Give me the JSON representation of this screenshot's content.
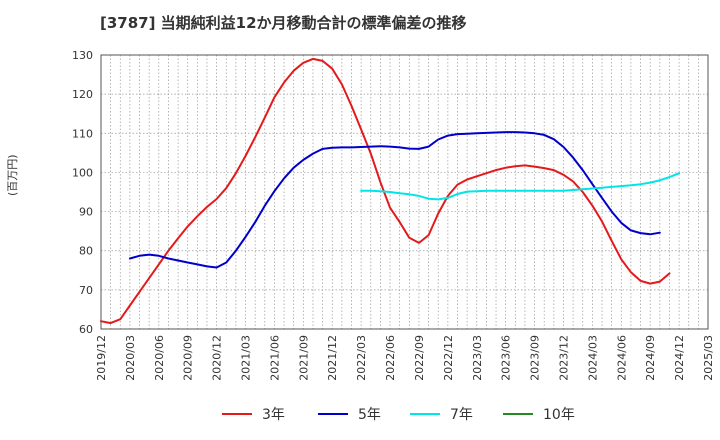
{
  "chart_data": {
    "type": "line",
    "title": "[3787]  当期純利益12か月移動合計の標準偏差の推移",
    "ylabel": "(百万円)",
    "xlabel": "",
    "ylim": [
      60,
      130
    ],
    "yticks": [
      60,
      70,
      80,
      90,
      100,
      110,
      120,
      130
    ],
    "xticks": [
      "2019/12",
      "2020/03",
      "2020/06",
      "2020/09",
      "2020/12",
      "2021/03",
      "2021/06",
      "2021/09",
      "2021/12",
      "2022/03",
      "2022/06",
      "2022/09",
      "2022/12",
      "2023/03",
      "2023/06",
      "2023/09",
      "2023/12",
      "2024/03",
      "2024/06",
      "2024/09",
      "2024/12",
      "2025/03"
    ],
    "grid": true,
    "legend_position": "bottom",
    "series": [
      {
        "name": "3年",
        "color": "#e31a1c",
        "x": [
          "2019/12",
          "2020/01",
          "2020/02",
          "2020/03",
          "2020/04",
          "2020/05",
          "2020/06",
          "2020/07",
          "2020/08",
          "2020/09",
          "2020/10",
          "2020/11",
          "2020/12",
          "2021/01",
          "2021/02",
          "2021/03",
          "2021/04",
          "2021/05",
          "2021/06",
          "2021/07",
          "2021/08",
          "2021/09",
          "2021/10",
          "2021/11",
          "2021/12",
          "2022/01",
          "2022/02",
          "2022/03",
          "2022/04",
          "2022/05",
          "2022/06",
          "2022/07",
          "2022/08",
          "2022/09",
          "2022/10",
          "2022/11",
          "2022/12",
          "2023/01",
          "2023/02",
          "2023/03",
          "2023/04",
          "2023/05",
          "2023/06",
          "2023/07",
          "2023/08",
          "2023/09",
          "2023/10",
          "2023/11",
          "2023/12",
          "2024/01",
          "2024/02",
          "2024/03",
          "2024/04",
          "2024/05",
          "2024/06",
          "2024/07",
          "2024/08",
          "2024/09",
          "2024/10",
          "2024/11",
          "2024/12"
        ],
        "y": [
          62,
          61.5,
          62.5,
          66,
          69.5,
          73,
          76.5,
          80,
          83.2,
          86.2,
          88.8,
          91.2,
          93.2,
          96,
          99.8,
          104.2,
          109,
          114,
          119.2,
          123,
          126,
          128,
          129,
          128.5,
          126.5,
          122.5,
          117,
          111,
          104.8,
          97.5,
          91,
          87.3,
          83.3,
          82,
          84,
          89.5,
          94,
          96.9,
          98.2,
          99,
          99.8,
          100.6,
          101.2,
          101.6,
          101.8,
          101.5,
          101.1,
          100.6,
          99.4,
          97.7,
          95,
          91.5,
          87.5,
          82.5,
          77.8,
          74.5,
          72.3,
          71.6,
          72.1,
          74.2,
          null
        ]
      },
      {
        "name": "5年",
        "color": "#0000cc",
        "x": [
          "2020/03",
          "2020/04",
          "2020/05",
          "2020/06",
          "2020/07",
          "2020/08",
          "2020/09",
          "2020/10",
          "2020/11",
          "2020/12",
          "2021/01",
          "2021/02",
          "2021/03",
          "2021/04",
          "2021/05",
          "2021/06",
          "2021/07",
          "2021/08",
          "2021/09",
          "2021/10",
          "2021/11",
          "2021/12",
          "2022/01",
          "2022/02",
          "2022/03",
          "2022/04",
          "2022/05",
          "2022/06",
          "2022/07",
          "2022/08",
          "2022/09",
          "2022/10",
          "2022/11",
          "2022/12",
          "2023/01",
          "2023/02",
          "2023/03",
          "2023/04",
          "2023/05",
          "2023/06",
          "2023/07",
          "2023/08",
          "2023/09",
          "2023/10",
          "2023/11",
          "2023/12",
          "2024/01",
          "2024/02",
          "2024/03",
          "2024/04",
          "2024/05",
          "2024/06",
          "2024/07",
          "2024/08",
          "2024/09",
          "2024/10",
          "2024/11",
          "2024/12"
        ],
        "y": [
          78,
          78.7,
          79,
          78.7,
          78,
          77.5,
          77,
          76.5,
          76,
          75.7,
          77,
          80,
          83.5,
          87.3,
          91.5,
          95.2,
          98.5,
          101.2,
          103.2,
          104.8,
          106,
          106.3,
          106.4,
          106.4,
          106.5,
          106.6,
          106.7,
          106.6,
          106.4,
          106.1,
          106,
          106.6,
          108.4,
          109.4,
          109.8,
          109.9,
          110,
          110.1,
          110.2,
          110.3,
          110.3,
          110.2,
          110,
          109.6,
          108.5,
          106.5,
          103.8,
          100.6,
          97,
          93.5,
          90,
          87.1,
          85.2,
          84.5,
          84.2,
          84.6,
          null,
          null
        ]
      },
      {
        "name": "7年",
        "color": "#00e5e5",
        "x": [
          "2022/03",
          "2022/04",
          "2022/05",
          "2022/06",
          "2022/07",
          "2022/08",
          "2022/09",
          "2022/10",
          "2022/11",
          "2022/12",
          "2023/01",
          "2023/02",
          "2023/03",
          "2023/04",
          "2023/05",
          "2023/06",
          "2023/07",
          "2023/08",
          "2023/09",
          "2023/10",
          "2023/11",
          "2023/12",
          "2024/01",
          "2024/02",
          "2024/03",
          "2024/04",
          "2024/05",
          "2024/06",
          "2024/07",
          "2024/08",
          "2024/09",
          "2024/10",
          "2024/11",
          "2024/12"
        ],
        "y": [
          95.3,
          95.3,
          95.2,
          95,
          94.7,
          94.4,
          94,
          93.3,
          93.1,
          93.5,
          94.5,
          95.1,
          95.2,
          95.3,
          95.3,
          95.3,
          95.3,
          95.3,
          95.3,
          95.3,
          95.3,
          95.3,
          95.5,
          95.7,
          95.9,
          96.1,
          96.3,
          96.5,
          96.7,
          97,
          97.4,
          98,
          98.8,
          99.8
        ]
      },
      {
        "name": "10年",
        "color": "#228b22",
        "x": [],
        "y": []
      }
    ]
  }
}
